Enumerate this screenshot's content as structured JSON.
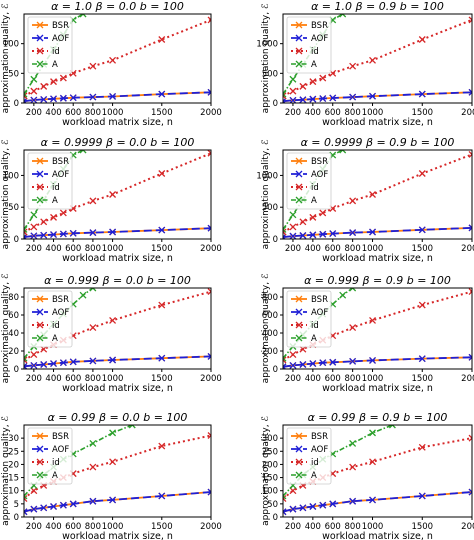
{
  "colors": {
    "BSR": "#ff7f0e",
    "AOF": "#1f1fd6",
    "id": "#d62728",
    "A": "#2ca02c"
  },
  "legend": [
    "BSR",
    "AOF",
    "id",
    "A"
  ],
  "shared": {
    "xlabel": "workload matrix size, n",
    "ylabel": "approximation quality, ℰ",
    "xticks": [
      "200",
      "400",
      "600",
      "800",
      "1000",
      "1500",
      "2000"
    ]
  },
  "chart_data": [
    {
      "type": "line",
      "title": "α = 1.0   β = 0.0   b = 100",
      "ylim": [
        0,
        150
      ],
      "yticks": [
        0,
        50,
        100
      ],
      "xlim": [
        100,
        2000
      ],
      "grid": false,
      "legend_placement": "top-left",
      "series": [
        {
          "name": "BSR",
          "x": [
            100,
            200,
            300,
            400,
            500,
            600,
            800,
            1000,
            1500,
            2000
          ],
          "y": [
            3,
            5,
            6,
            7,
            8,
            9,
            10,
            11,
            15,
            18
          ]
        },
        {
          "name": "AOF",
          "x": [
            100,
            200,
            300,
            400,
            500,
            600,
            800,
            1000,
            1500,
            2000
          ],
          "y": [
            3,
            5,
            6,
            7,
            8,
            9,
            10,
            11,
            15,
            18
          ]
        },
        {
          "name": "id",
          "x": [
            100,
            200,
            300,
            400,
            500,
            600,
            800,
            1000,
            1500,
            2000
          ],
          "y": [
            12,
            20,
            28,
            36,
            42,
            50,
            62,
            72,
            107,
            140
          ]
        },
        {
          "name": "A",
          "x": [
            100,
            200,
            300,
            400,
            500,
            600,
            700
          ],
          "y": [
            15,
            40,
            65,
            90,
            115,
            140,
            150
          ]
        }
      ]
    },
    {
      "type": "line",
      "title": "α = 1.0   β = 0.9   b = 100",
      "ylim": [
        0,
        1500
      ],
      "yticks": [
        0,
        500,
        1000
      ],
      "xlim": [
        100,
        2000
      ],
      "grid": false,
      "legend_placement": "top-left",
      "series": [
        {
          "name": "BSR",
          "x": [
            100,
            200,
            300,
            400,
            500,
            600,
            800,
            1000,
            1500,
            2000
          ],
          "y": [
            30,
            45,
            55,
            65,
            75,
            85,
            100,
            115,
            150,
            180
          ]
        },
        {
          "name": "AOF",
          "x": [
            100,
            200,
            300,
            400,
            500,
            600,
            800,
            1000,
            1500,
            2000
          ],
          "y": [
            30,
            45,
            55,
            65,
            75,
            85,
            100,
            115,
            150,
            180
          ]
        },
        {
          "name": "id",
          "x": [
            100,
            200,
            300,
            400,
            500,
            600,
            800,
            1000,
            1500,
            2000
          ],
          "y": [
            120,
            200,
            280,
            360,
            420,
            500,
            620,
            720,
            1070,
            1400
          ]
        },
        {
          "name": "A",
          "x": [
            100,
            200,
            300,
            400,
            500,
            600,
            700
          ],
          "y": [
            150,
            400,
            650,
            900,
            1150,
            1400,
            1500
          ]
        }
      ]
    },
    {
      "type": "line",
      "title": "α = 0.9999   β = 0.0   b = 100",
      "ylim": [
        0,
        140
      ],
      "yticks": [
        0,
        50,
        100
      ],
      "xlim": [
        100,
        2000
      ],
      "grid": false,
      "legend_placement": "top-left",
      "series": [
        {
          "name": "BSR",
          "x": [
            100,
            200,
            300,
            400,
            500,
            600,
            800,
            1000,
            1500,
            2000
          ],
          "y": [
            3,
            5,
            6,
            7,
            8,
            9,
            10,
            11,
            14,
            17
          ]
        },
        {
          "name": "AOF",
          "x": [
            100,
            200,
            300,
            400,
            500,
            600,
            800,
            1000,
            1500,
            2000
          ],
          "y": [
            3,
            5,
            6,
            7,
            8,
            9,
            10,
            11,
            14,
            17
          ]
        },
        {
          "name": "id",
          "x": [
            100,
            200,
            300,
            400,
            500,
            600,
            800,
            1000,
            1500,
            2000
          ],
          "y": [
            11,
            19,
            27,
            34,
            41,
            48,
            60,
            70,
            103,
            135
          ]
        },
        {
          "name": "A",
          "x": [
            100,
            200,
            300,
            400,
            500,
            600,
            700
          ],
          "y": [
            15,
            38,
            62,
            86,
            110,
            132,
            140
          ]
        }
      ]
    },
    {
      "type": "line",
      "title": "α = 0.9999   β = 0.9   b = 100",
      "ylim": [
        0,
        1400
      ],
      "yticks": [
        0,
        500,
        1000
      ],
      "xlim": [
        100,
        2000
      ],
      "grid": false,
      "legend_placement": "top-left",
      "series": [
        {
          "name": "BSR",
          "x": [
            100,
            200,
            300,
            400,
            500,
            600,
            800,
            1000,
            1500,
            2000
          ],
          "y": [
            30,
            45,
            55,
            65,
            75,
            85,
            100,
            110,
            145,
            175
          ]
        },
        {
          "name": "AOF",
          "x": [
            100,
            200,
            300,
            400,
            500,
            600,
            800,
            1000,
            1500,
            2000
          ],
          "y": [
            30,
            45,
            55,
            65,
            75,
            85,
            100,
            110,
            145,
            175
          ]
        },
        {
          "name": "id",
          "x": [
            100,
            200,
            300,
            400,
            500,
            600,
            800,
            1000,
            1500,
            2000
          ],
          "y": [
            110,
            190,
            270,
            340,
            410,
            480,
            600,
            700,
            1030,
            1330
          ]
        },
        {
          "name": "A",
          "x": [
            100,
            200,
            300,
            400,
            500,
            600,
            700
          ],
          "y": [
            150,
            380,
            620,
            860,
            1100,
            1320,
            1400
          ]
        }
      ]
    },
    {
      "type": "line",
      "title": "α = 0.999   β = 0.0   b = 100",
      "ylim": [
        0,
        90
      ],
      "yticks": [
        0,
        20,
        40,
        60,
        80
      ],
      "xlim": [
        100,
        2000
      ],
      "grid": false,
      "legend_placement": "top-left",
      "series": [
        {
          "name": "BSR",
          "x": [
            100,
            200,
            300,
            400,
            500,
            600,
            800,
            1000,
            1500,
            2000
          ],
          "y": [
            3,
            4,
            5,
            6,
            7,
            8,
            9,
            10,
            12,
            14
          ]
        },
        {
          "name": "AOF",
          "x": [
            100,
            200,
            300,
            400,
            500,
            600,
            800,
            1000,
            1500,
            2000
          ],
          "y": [
            3,
            4,
            5,
            6,
            7,
            8,
            9,
            10,
            12,
            14
          ]
        },
        {
          "name": "id",
          "x": [
            100,
            200,
            300,
            400,
            500,
            600,
            800,
            1000,
            1500,
            2000
          ],
          "y": [
            10,
            16,
            22,
            27,
            32,
            37,
            46,
            54,
            71,
            86
          ]
        },
        {
          "name": "A",
          "x": [
            100,
            200,
            300,
            400,
            500,
            600,
            700,
            800
          ],
          "y": [
            12,
            25,
            38,
            50,
            61,
            72,
            82,
            90
          ]
        }
      ]
    },
    {
      "type": "line",
      "title": "α = 0.999   β = 0.9   b = 100",
      "ylim": [
        0,
        900
      ],
      "yticks": [
        0,
        200,
        400,
        600,
        800
      ],
      "xlim": [
        100,
        2000
      ],
      "grid": false,
      "legend_placement": "top-left",
      "series": [
        {
          "name": "BSR",
          "x": [
            100,
            200,
            300,
            400,
            500,
            600,
            800,
            1000,
            1500,
            2000
          ],
          "y": [
            25,
            40,
            50,
            60,
            70,
            75,
            85,
            95,
            115,
            130
          ]
        },
        {
          "name": "AOF",
          "x": [
            100,
            200,
            300,
            400,
            500,
            600,
            800,
            1000,
            1500,
            2000
          ],
          "y": [
            25,
            40,
            50,
            60,
            70,
            75,
            85,
            95,
            115,
            130
          ]
        },
        {
          "name": "id",
          "x": [
            100,
            200,
            300,
            400,
            500,
            600,
            800,
            1000,
            1500,
            2000
          ],
          "y": [
            100,
            160,
            220,
            270,
            320,
            370,
            460,
            540,
            710,
            860
          ]
        },
        {
          "name": "A",
          "x": [
            100,
            200,
            300,
            400,
            500,
            600,
            700,
            800
          ],
          "y": [
            120,
            250,
            380,
            500,
            610,
            720,
            820,
            900
          ]
        }
      ]
    },
    {
      "type": "line",
      "title": "α = 0.99   β = 0.0   b = 100",
      "ylim": [
        0,
        35
      ],
      "yticks": [
        0,
        5,
        10,
        15,
        20,
        25,
        30
      ],
      "xlim": [
        100,
        2000
      ],
      "grid": false,
      "legend_placement": "top-left",
      "series": [
        {
          "name": "BSR",
          "x": [
            100,
            200,
            300,
            400,
            500,
            600,
            800,
            1000,
            1500,
            2000
          ],
          "y": [
            2,
            3,
            3.5,
            4,
            4.5,
            5,
            6,
            6.5,
            8,
            9.5
          ]
        },
        {
          "name": "AOF",
          "x": [
            100,
            200,
            300,
            400,
            500,
            600,
            800,
            1000,
            1500,
            2000
          ],
          "y": [
            2,
            3,
            3.5,
            4,
            4.5,
            5,
            6,
            6.5,
            8,
            9.5
          ]
        },
        {
          "name": "id",
          "x": [
            100,
            200,
            300,
            400,
            500,
            600,
            800,
            1000,
            1500,
            2000
          ],
          "y": [
            7,
            10,
            12,
            13.5,
            15,
            16.5,
            19,
            21,
            27,
            31
          ]
        },
        {
          "name": "A",
          "x": [
            100,
            200,
            300,
            400,
            500,
            600,
            800,
            1000,
            1200
          ],
          "y": [
            8,
            12,
            16,
            19,
            22,
            24,
            28,
            32,
            35
          ]
        }
      ]
    },
    {
      "type": "line",
      "title": "α = 0.99   β = 0.9   b = 100",
      "ylim": [
        0,
        350
      ],
      "yticks": [
        0,
        50,
        100,
        150,
        200,
        250,
        300
      ],
      "xlim": [
        100,
        2000
      ],
      "grid": false,
      "legend_placement": "top-left",
      "series": [
        {
          "name": "BSR",
          "x": [
            100,
            200,
            300,
            400,
            500,
            600,
            800,
            1000,
            1500,
            2000
          ],
          "y": [
            20,
            30,
            35,
            40,
            45,
            50,
            60,
            65,
            80,
            95
          ]
        },
        {
          "name": "AOF",
          "x": [
            100,
            200,
            300,
            400,
            500,
            600,
            800,
            1000,
            1500,
            2000
          ],
          "y": [
            20,
            30,
            35,
            40,
            45,
            50,
            60,
            65,
            80,
            95
          ]
        },
        {
          "name": "id",
          "x": [
            100,
            200,
            300,
            400,
            500,
            600,
            800,
            1000,
            1500,
            2000
          ],
          "y": [
            70,
            100,
            120,
            135,
            150,
            165,
            190,
            210,
            265,
            300
          ]
        },
        {
          "name": "A",
          "x": [
            100,
            200,
            300,
            400,
            500,
            600,
            800,
            1000,
            1200
          ],
          "y": [
            80,
            120,
            160,
            190,
            220,
            240,
            280,
            320,
            350
          ]
        }
      ]
    }
  ]
}
